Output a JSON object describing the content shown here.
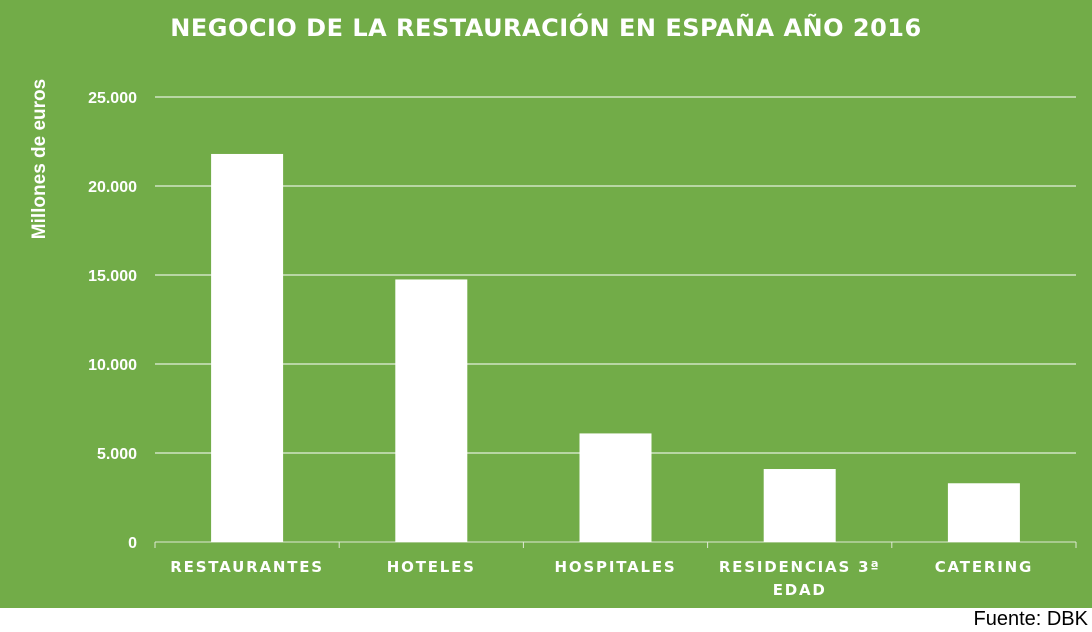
{
  "title": "NEGOCIO DE LA RESTAURACIÓN  EN ESPAÑA AÑO 2016",
  "source": "Fuente: DBK",
  "colors": {
    "background": "#72ac48",
    "bar": "#ffffff",
    "text": "#ffffff"
  },
  "chart_data": {
    "type": "bar",
    "title": "NEGOCIO DE LA RESTAURACIÓN  EN ESPAÑA AÑO 2016",
    "xlabel": "",
    "ylabel": "Millones de euros",
    "ylim": [
      0,
      25000
    ],
    "grid": true,
    "legend": "none",
    "yticks": [
      "0",
      "5.000",
      "10.000",
      "15.000",
      "20.000",
      "25.000"
    ],
    "ytick_values": [
      0,
      5000,
      10000,
      15000,
      20000,
      25000
    ],
    "categories": [
      "RESTAURANTES",
      "HOTELES",
      "HOSPITALES",
      "RESIDENCIAS 3ª EDAD",
      "CATERING"
    ],
    "category_lines": [
      [
        "RESTAURANTES"
      ],
      [
        "HOTELES"
      ],
      [
        "HOSPITALES"
      ],
      [
        "RESIDENCIAS 3ª",
        "EDAD"
      ],
      [
        "CATERING"
      ]
    ],
    "values": [
      21800,
      14750,
      6100,
      4100,
      3300
    ]
  }
}
